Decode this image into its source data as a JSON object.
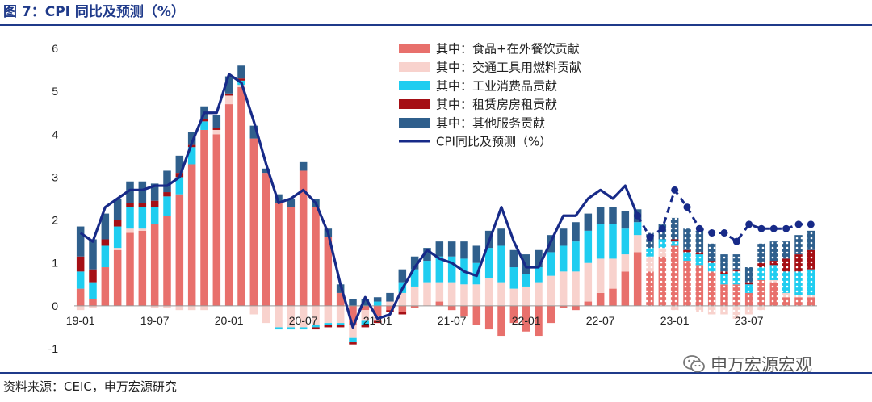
{
  "header": {
    "title": "图 7：CPI 同比及预测（%）"
  },
  "footer": {
    "source": "资料来源：CEIC，申万宏源研究",
    "watermark": "申万宏源宏观"
  },
  "chart_data": {
    "type": "bar",
    "stacked": true,
    "ylim": [
      -1,
      6
    ],
    "yticks": [
      -1,
      0,
      1,
      2,
      3,
      4,
      5,
      6
    ],
    "xtick_labels": [
      "19-01",
      "19-07",
      "20-01",
      "20-07",
      "21-01",
      "21-07",
      "22-01",
      "22-07",
      "23-01",
      "23-07"
    ],
    "forecast_start_index": 46,
    "legend_position": "top-center",
    "colors": {
      "food": "#e8706c",
      "transport": "#f8d2cd",
      "industrial": "#1fcdf0",
      "rent": "#a50f15",
      "services": "#2f5f8c",
      "cpi": "#172a88"
    },
    "categories": [
      "2019-01",
      "2019-02",
      "2019-03",
      "2019-04",
      "2019-05",
      "2019-06",
      "2019-07",
      "2019-08",
      "2019-09",
      "2019-10",
      "2019-11",
      "2019-12",
      "2020-01",
      "2020-02",
      "2020-03",
      "2020-04",
      "2020-05",
      "2020-06",
      "2020-07",
      "2020-08",
      "2020-09",
      "2020-10",
      "2020-11",
      "2020-12",
      "2021-01",
      "2021-02",
      "2021-03",
      "2021-04",
      "2021-05",
      "2021-06",
      "2021-07",
      "2021-08",
      "2021-09",
      "2021-10",
      "2021-11",
      "2021-12",
      "2022-01",
      "2022-02",
      "2022-03",
      "2022-04",
      "2022-05",
      "2022-06",
      "2022-07",
      "2022-08",
      "2022-09",
      "2022-10",
      "2022-11",
      "2022-12",
      "2023-01",
      "2023-02",
      "2023-03",
      "2023-04",
      "2023-05",
      "2023-06",
      "2023-07",
      "2023-08",
      "2023-09",
      "2023-10",
      "2023-11",
      "2023-12"
    ],
    "series": [
      {
        "name": "其中：食品+在外餐饮贡献",
        "key": "food",
        "values": [
          0.4,
          0.15,
          0.9,
          1.3,
          1.7,
          1.75,
          1.9,
          2.1,
          2.6,
          3.3,
          4.1,
          4.0,
          4.7,
          5.1,
          3.9,
          3.1,
          2.4,
          2.3,
          3.15,
          2.3,
          1.6,
          0.3,
          -0.45,
          -0.1,
          -0.25,
          -0.1,
          -0.15,
          -0.05,
          0.0,
          0.1,
          -0.1,
          -0.25,
          -0.45,
          -0.55,
          -0.7,
          -0.4,
          -0.6,
          -0.7,
          -0.4,
          -0.05,
          -0.1,
          0.1,
          0.3,
          0.4,
          0.8,
          1.25,
          0.8,
          1.15,
          1.4,
          1.05,
          0.95,
          0.8,
          0.5,
          0.5,
          0.3,
          0.6,
          0.55,
          0.2,
          0.2,
          0.2
        ]
      },
      {
        "name": "其中：交通工具用燃料贡献",
        "key": "transport",
        "values": [
          -0.1,
          -0.05,
          0.0,
          0.05,
          0.1,
          0.05,
          -0.05,
          -0.05,
          -0.1,
          -0.1,
          -0.1,
          0.1,
          0.2,
          0.05,
          -0.2,
          -0.4,
          -0.5,
          -0.5,
          -0.5,
          -0.45,
          -0.4,
          -0.4,
          -0.3,
          -0.25,
          -0.1,
          0.1,
          0.3,
          0.45,
          0.55,
          0.45,
          0.55,
          0.5,
          0.5,
          0.65,
          0.55,
          0.4,
          0.45,
          0.55,
          0.7,
          0.8,
          0.8,
          0.9,
          0.8,
          0.7,
          0.4,
          0.4,
          0.35,
          0.2,
          -0.1,
          0.0,
          -0.15,
          -0.2,
          -0.2,
          -0.3,
          -0.2,
          -0.1,
          0.05,
          0.1,
          0.05,
          0.05
        ]
      },
      {
        "name": "其中：工业消费品贡献",
        "key": "industrial",
        "values": [
          0.4,
          0.4,
          0.5,
          0.5,
          0.5,
          0.5,
          0.4,
          0.45,
          0.4,
          0.4,
          0.2,
          0.0,
          0.0,
          0.1,
          0.0,
          0.0,
          -0.05,
          -0.05,
          -0.05,
          -0.05,
          -0.05,
          -0.05,
          -0.1,
          -0.1,
          0.1,
          0.0,
          0.25,
          0.4,
          0.5,
          0.6,
          0.6,
          0.6,
          0.5,
          0.7,
          0.85,
          0.5,
          0.3,
          0.35,
          0.55,
          0.6,
          0.7,
          0.75,
          0.8,
          0.8,
          0.6,
          0.3,
          0.2,
          0.2,
          0.1,
          0.2,
          0.25,
          0.2,
          0.25,
          0.3,
          0.2,
          0.3,
          0.35,
          0.5,
          0.55,
          0.6
        ]
      },
      {
        "name": "其中：租赁房房租贡献",
        "key": "rent",
        "values": [
          0.35,
          0.3,
          0.15,
          0.15,
          0.1,
          0.1,
          0.15,
          0.1,
          0.1,
          0.05,
          0.05,
          0.05,
          0.05,
          0.05,
          0.0,
          0.0,
          0.0,
          0.0,
          0.0,
          -0.05,
          -0.05,
          -0.05,
          -0.05,
          -0.05,
          -0.05,
          -0.05,
          -0.05,
          0.0,
          0.0,
          0.0,
          0.0,
          0.0,
          0.0,
          0.0,
          0.0,
          0.0,
          0.0,
          0.0,
          0.0,
          0.0,
          0.0,
          0.0,
          0.0,
          0.0,
          0.0,
          0.0,
          0.0,
          0.0,
          0.05,
          0.05,
          0.05,
          0.05,
          0.05,
          0.05,
          0.05,
          0.1,
          0.1,
          0.3,
          0.4,
          0.45
        ]
      },
      {
        "name": "其中：其他服务贡献",
        "key": "services",
        "values": [
          0.7,
          0.7,
          0.6,
          0.5,
          0.5,
          0.5,
          0.4,
          0.5,
          0.4,
          0.3,
          0.3,
          0.3,
          0.4,
          0.3,
          0.3,
          0.1,
          0.2,
          0.2,
          0.2,
          0.2,
          0.2,
          0.2,
          0.15,
          0.15,
          0.1,
          0.2,
          0.3,
          0.3,
          0.3,
          0.35,
          0.35,
          0.4,
          0.4,
          0.4,
          0.4,
          0.4,
          0.45,
          0.4,
          0.4,
          0.4,
          0.45,
          0.4,
          0.4,
          0.4,
          0.4,
          0.3,
          0.35,
          0.35,
          0.5,
          0.5,
          0.5,
          0.4,
          0.4,
          0.35,
          0.35,
          0.45,
          0.45,
          0.4,
          0.45,
          0.45
        ]
      },
      {
        "name": "CPI同比及预测（%）",
        "key": "cpi",
        "type": "line",
        "values": [
          1.7,
          1.5,
          2.3,
          2.5,
          2.7,
          2.7,
          2.8,
          2.8,
          3.0,
          3.8,
          4.5,
          4.5,
          5.4,
          5.2,
          4.3,
          3.3,
          2.4,
          2.5,
          2.7,
          2.4,
          1.7,
          0.5,
          -0.5,
          0.2,
          -0.3,
          -0.2,
          0.4,
          0.9,
          1.3,
          1.1,
          1.0,
          0.8,
          0.7,
          1.5,
          2.3,
          1.5,
          0.9,
          0.9,
          1.5,
          2.1,
          2.1,
          2.5,
          2.7,
          2.5,
          2.8,
          2.1,
          1.6,
          1.8,
          2.7,
          2.3,
          1.8,
          1.7,
          1.7,
          1.5,
          1.9,
          1.8,
          1.8,
          1.8,
          1.9,
          1.9
        ]
      }
    ]
  }
}
